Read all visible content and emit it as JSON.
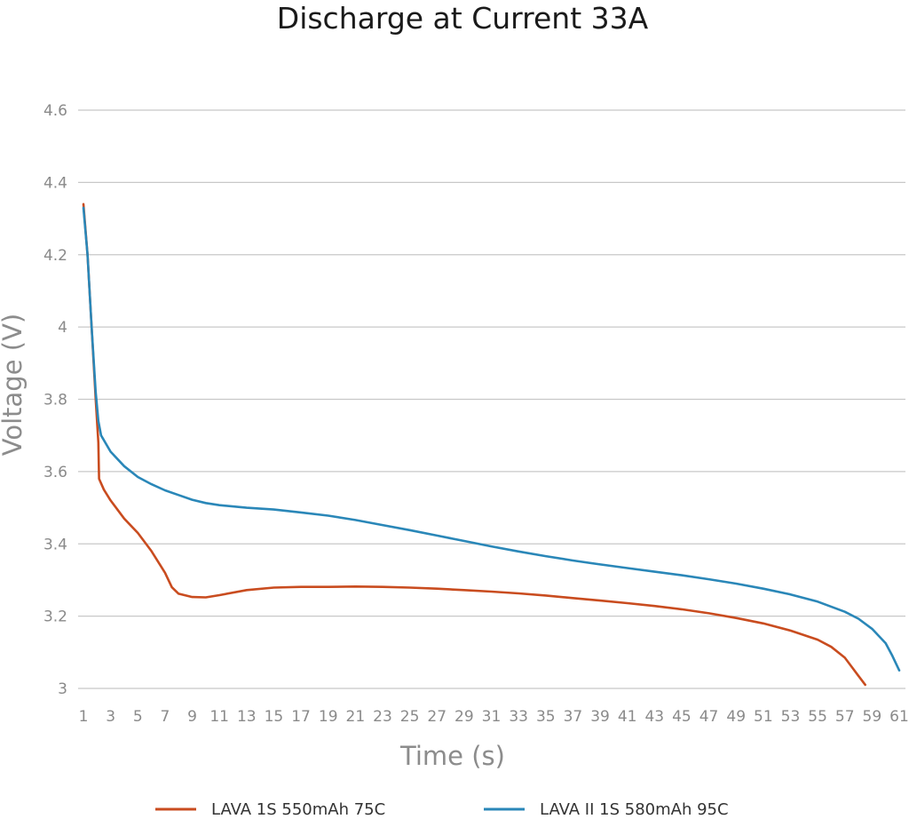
{
  "chart_data": {
    "type": "line",
    "title": "Discharge at Current 33A",
    "xlabel": "Time (s)",
    "ylabel": "Voltage (V)",
    "xlim": [
      1,
      61
    ],
    "ylim": [
      3,
      4.6
    ],
    "x_ticks": [
      "1",
      "3",
      "5",
      "7",
      "9",
      "11",
      "13",
      "15",
      "17",
      "19",
      "21",
      "23",
      "25",
      "27",
      "29",
      "31",
      "33",
      "35",
      "37",
      "39",
      "41",
      "43",
      "45",
      "47",
      "49",
      "51",
      "53",
      "55",
      "57",
      "59",
      "61"
    ],
    "y_ticks": [
      "3",
      "3.2",
      "3.4",
      "3.6",
      "3.8",
      "4",
      "4.2",
      "4.4",
      "4.6"
    ],
    "grid": "horizontal",
    "legend_position": "bottom",
    "series": [
      {
        "name": "LAVA 1S 550mAh 75C",
        "color": "#c94c1f",
        "points": [
          [
            1.0,
            4.34
          ],
          [
            1.3,
            4.2
          ],
          [
            1.6,
            4.0
          ],
          [
            1.9,
            3.8
          ],
          [
            2.1,
            3.68
          ],
          [
            2.15,
            3.58
          ],
          [
            2.5,
            3.55
          ],
          [
            3,
            3.52
          ],
          [
            4,
            3.47
          ],
          [
            5,
            3.43
          ],
          [
            6,
            3.38
          ],
          [
            7,
            3.32
          ],
          [
            7.5,
            3.28
          ],
          [
            8,
            3.262
          ],
          [
            9,
            3.253
          ],
          [
            10,
            3.252
          ],
          [
            11,
            3.258
          ],
          [
            13,
            3.272
          ],
          [
            15,
            3.279
          ],
          [
            17,
            3.281
          ],
          [
            19,
            3.281
          ],
          [
            21,
            3.282
          ],
          [
            23,
            3.281
          ],
          [
            25,
            3.279
          ],
          [
            27,
            3.276
          ],
          [
            29,
            3.272
          ],
          [
            31,
            3.268
          ],
          [
            33,
            3.263
          ],
          [
            35,
            3.257
          ],
          [
            37,
            3.25
          ],
          [
            39,
            3.243
          ],
          [
            41,
            3.236
          ],
          [
            43,
            3.228
          ],
          [
            45,
            3.219
          ],
          [
            47,
            3.208
          ],
          [
            49,
            3.195
          ],
          [
            51,
            3.18
          ],
          [
            53,
            3.16
          ],
          [
            55,
            3.135
          ],
          [
            56,
            3.115
          ],
          [
            57,
            3.085
          ],
          [
            57.5,
            3.06
          ],
          [
            58,
            3.035
          ],
          [
            58.5,
            3.01
          ]
        ]
      },
      {
        "name": "LAVA II 1S 580mAh 95C",
        "color": "#2a87b8",
        "points": [
          [
            1.0,
            4.33
          ],
          [
            1.3,
            4.2
          ],
          [
            1.6,
            4.0
          ],
          [
            1.9,
            3.82
          ],
          [
            2.1,
            3.74
          ],
          [
            2.3,
            3.7
          ],
          [
            3,
            3.655
          ],
          [
            4,
            3.615
          ],
          [
            5,
            3.585
          ],
          [
            6,
            3.565
          ],
          [
            7,
            3.548
          ],
          [
            8,
            3.535
          ],
          [
            9,
            3.522
          ],
          [
            10,
            3.513
          ],
          [
            11,
            3.507
          ],
          [
            13,
            3.5
          ],
          [
            15,
            3.495
          ],
          [
            17,
            3.487
          ],
          [
            19,
            3.478
          ],
          [
            21,
            3.466
          ],
          [
            23,
            3.452
          ],
          [
            25,
            3.438
          ],
          [
            27,
            3.423
          ],
          [
            29,
            3.408
          ],
          [
            31,
            3.393
          ],
          [
            33,
            3.379
          ],
          [
            35,
            3.366
          ],
          [
            37,
            3.354
          ],
          [
            39,
            3.343
          ],
          [
            41,
            3.333
          ],
          [
            43,
            3.323
          ],
          [
            45,
            3.313
          ],
          [
            47,
            3.302
          ],
          [
            49,
            3.29
          ],
          [
            51,
            3.276
          ],
          [
            53,
            3.26
          ],
          [
            55,
            3.24
          ],
          [
            57,
            3.212
          ],
          [
            58,
            3.193
          ],
          [
            59,
            3.165
          ],
          [
            60,
            3.125
          ],
          [
            60.5,
            3.09
          ],
          [
            61,
            3.05
          ]
        ]
      }
    ]
  }
}
